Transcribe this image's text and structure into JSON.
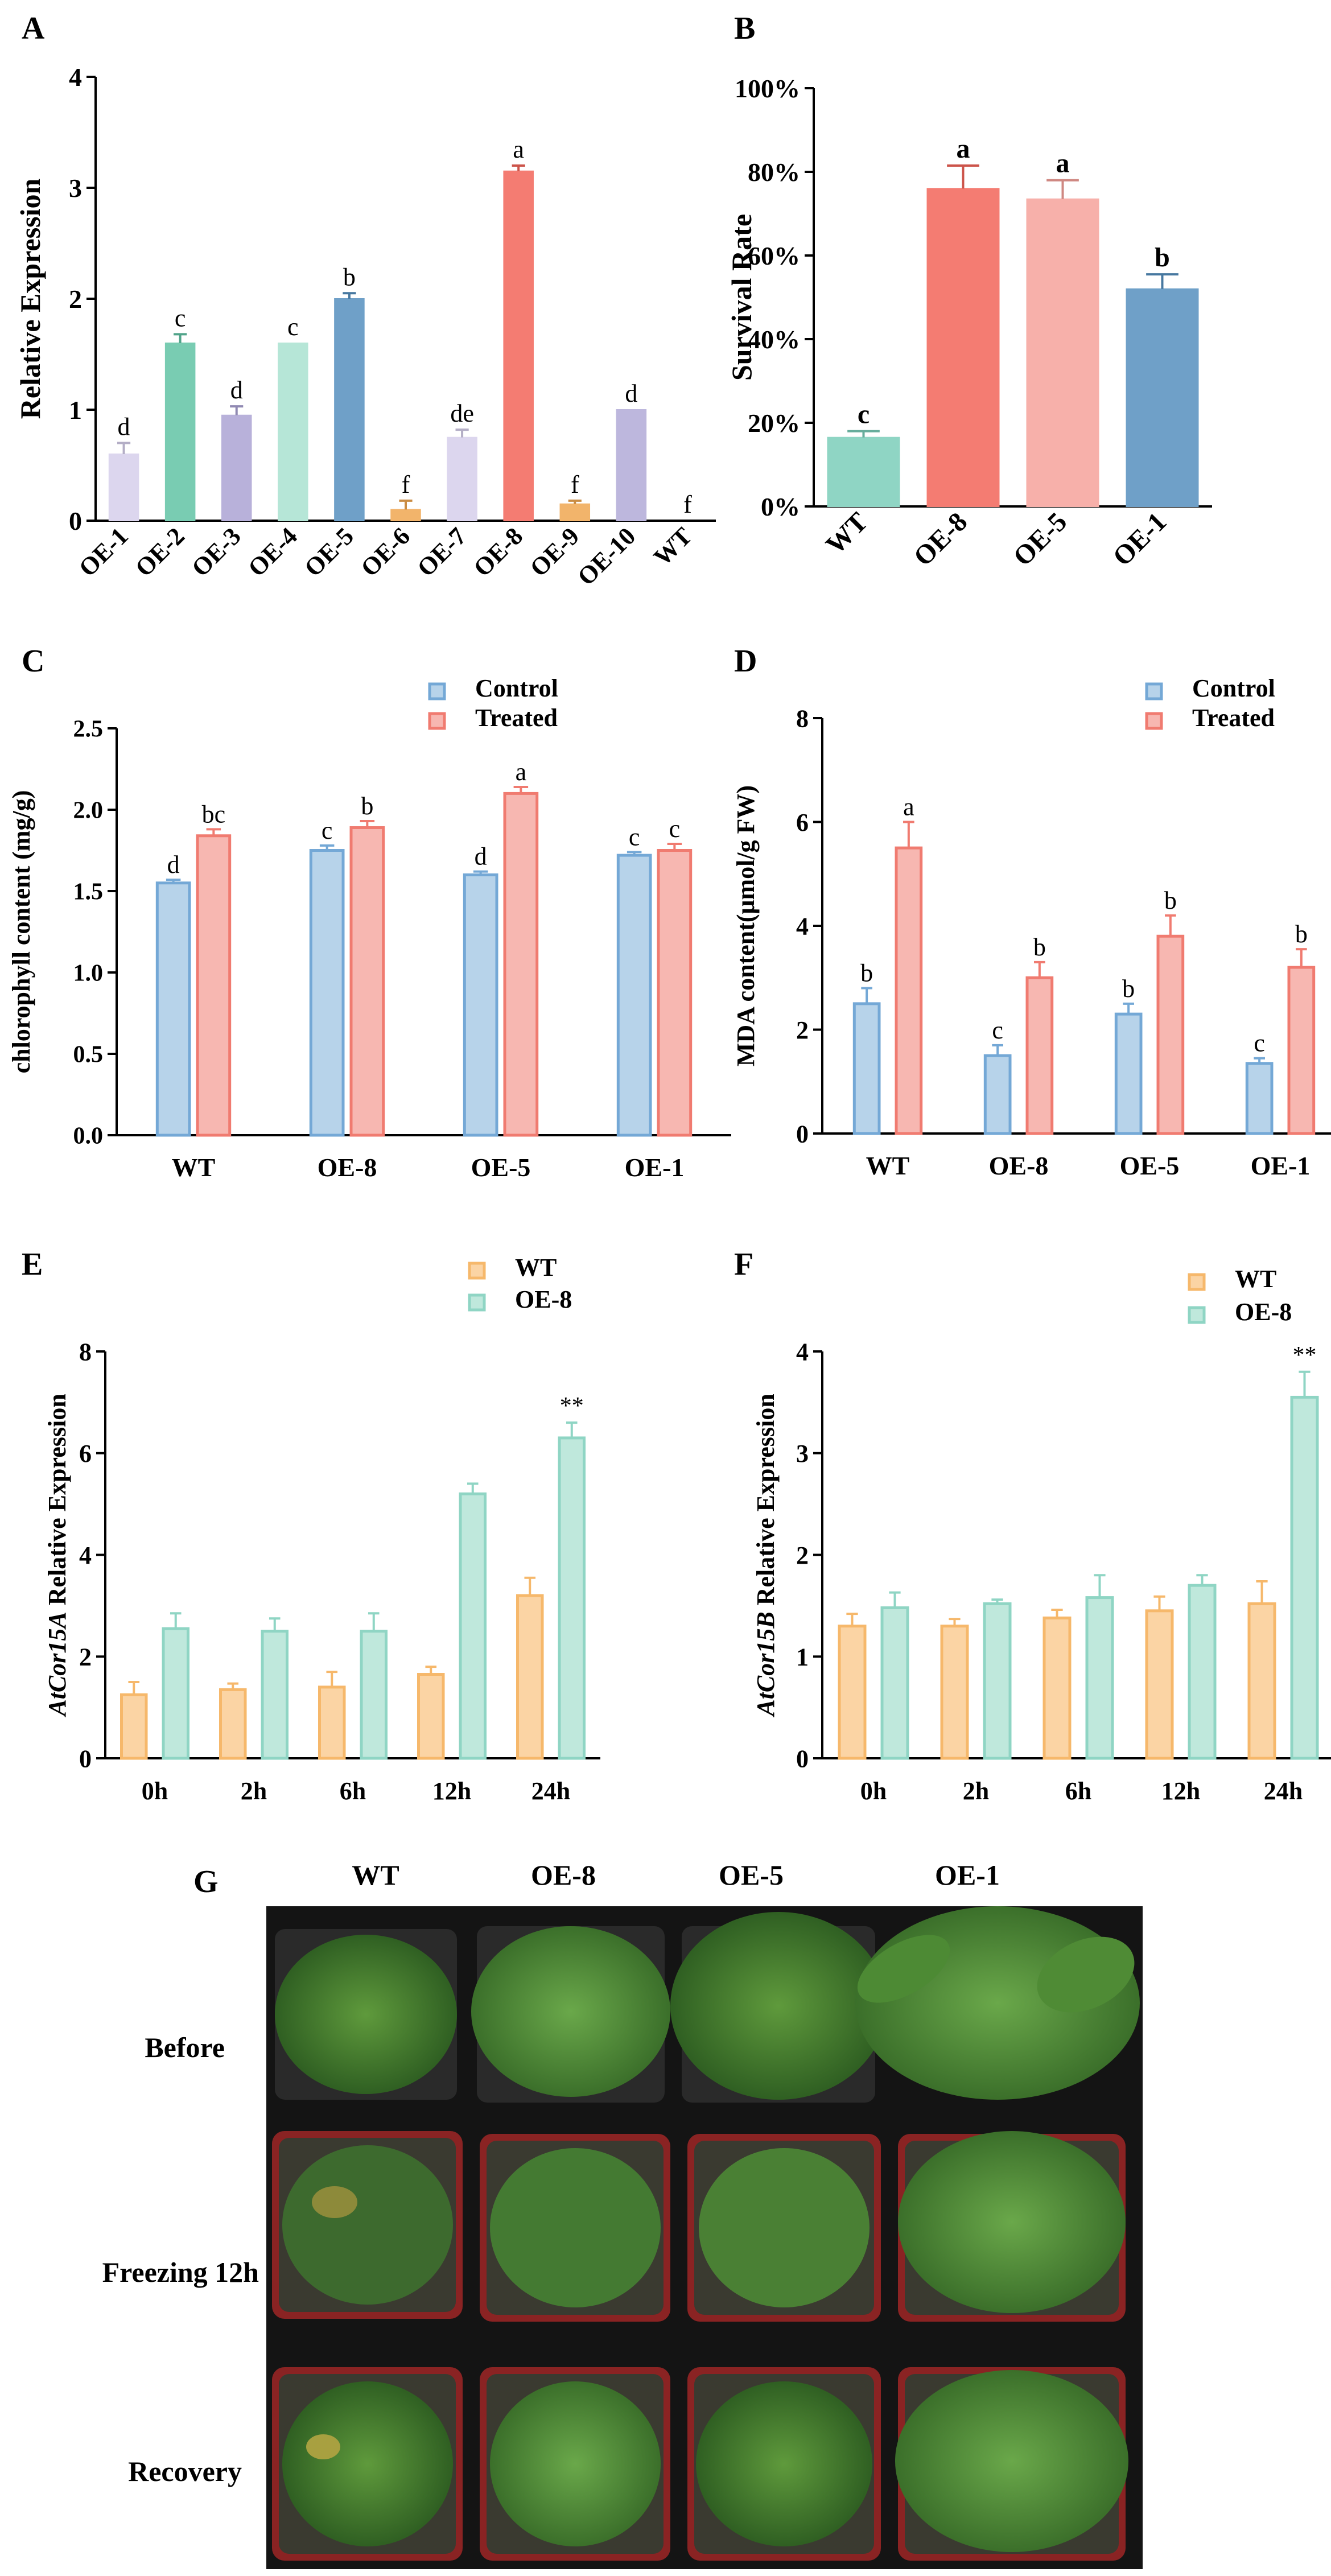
{
  "chart_data": [
    {
      "panel": "A",
      "type": "bar",
      "ylabel": "Relative Expression",
      "ylim": [
        0,
        4
      ],
      "yticks": [
        0,
        1,
        2,
        3,
        4
      ],
      "categories": [
        "OE-1",
        "OE-2",
        "OE-3",
        "OE-4",
        "OE-5",
        "OE-6",
        "OE-7",
        "OE-8",
        "OE-9",
        "OE-10",
        "WT"
      ],
      "values": [
        0.6,
        1.6,
        0.95,
        1.6,
        2.0,
        0.1,
        0.75,
        3.15,
        0.15,
        1.0,
        0.0
      ],
      "errors": [
        0.1,
        0.08,
        0.08,
        0.0,
        0.05,
        0.08,
        0.07,
        0.05,
        0.03,
        0.0,
        0.0
      ],
      "letters": [
        "d",
        "c",
        "d",
        "c",
        "b",
        "f",
        "de",
        "a",
        "f",
        "d",
        "f"
      ],
      "colors": [
        "#dcd6ee",
        "#79ccb2",
        "#b8b1da",
        "#b6e6d7",
        "#6fa0c8",
        "#f2b46b",
        "#dcd6ee",
        "#f47c72",
        "#f2b46b",
        "#bdb7dd",
        "#ffffff"
      ]
    },
    {
      "panel": "B",
      "type": "bar",
      "ylabel": "Survival Rate",
      "ylim": [
        0,
        100
      ],
      "yticks": [
        "0%",
        "20%",
        "40%",
        "60%",
        "80%",
        "100%"
      ],
      "categories": [
        "WT",
        "OE-8",
        "OE-5",
        "OE-1"
      ],
      "values": [
        16.5,
        76,
        73.5,
        52
      ],
      "errors": [
        1.5,
        5.5,
        4.5,
        3.5
      ],
      "letters": [
        "c",
        "a",
        "a",
        "b"
      ],
      "colors": [
        "#8fd5c4",
        "#f47c72",
        "#f7b0aa",
        "#6fa0c8"
      ]
    },
    {
      "panel": "C",
      "type": "bar",
      "ylabel": "chlorophyll content (mg/g)",
      "ylim": [
        0,
        2.5
      ],
      "yticks": [
        "0.0",
        "0.5",
        "1.0",
        "1.5",
        "2.0",
        "2.5"
      ],
      "categories": [
        "WT",
        "OE-8",
        "OE-5",
        "OE-1"
      ],
      "legend": [
        "Control",
        "Treated"
      ],
      "series": [
        {
          "name": "Control",
          "values": [
            1.55,
            1.75,
            1.6,
            1.72
          ],
          "errors": [
            0.02,
            0.03,
            0.02,
            0.02
          ],
          "letters": [
            "d",
            "c",
            "d",
            "c"
          ],
          "fill": "#b7d3ea",
          "stroke": "#74a8d6"
        },
        {
          "name": "Treated",
          "values": [
            1.84,
            1.89,
            2.1,
            1.75
          ],
          "errors": [
            0.04,
            0.04,
            0.04,
            0.04
          ],
          "letters": [
            "bc",
            "b",
            "a",
            "c"
          ],
          "fill": "#f7b7b1",
          "stroke": "#f07b70"
        }
      ]
    },
    {
      "panel": "D",
      "type": "bar",
      "ylabel": "MDA content(μmol/g FW)",
      "ylim": [
        0,
        8
      ],
      "yticks": [
        "0",
        "2",
        "4",
        "6",
        "8"
      ],
      "categories": [
        "WT",
        "OE-8",
        "OE-5",
        "OE-1"
      ],
      "legend": [
        "Control",
        "Treated"
      ],
      "series": [
        {
          "name": "Control",
          "values": [
            2.5,
            1.5,
            2.3,
            1.35
          ],
          "errors": [
            0.3,
            0.2,
            0.2,
            0.1
          ],
          "letters": [
            "b",
            "c",
            "b",
            "c"
          ],
          "fill": "#b7d3ea",
          "stroke": "#74a8d6"
        },
        {
          "name": "Treated",
          "values": [
            5.5,
            3.0,
            3.8,
            3.2
          ],
          "errors": [
            0.5,
            0.3,
            0.4,
            0.35
          ],
          "letters": [
            "a",
            "b",
            "b",
            "b"
          ],
          "fill": "#f7b7b1",
          "stroke": "#f07b70"
        }
      ]
    },
    {
      "panel": "E",
      "type": "bar",
      "ylabel_italic": "AtCor15A",
      "ylabel_rest": " Relative Expression",
      "ylim": [
        0,
        8
      ],
      "yticks": [
        "0",
        "2",
        "4",
        "6",
        "8"
      ],
      "categories": [
        "0h",
        "2h",
        "6h",
        "12h",
        "24h"
      ],
      "legend": [
        "WT",
        "OE-8"
      ],
      "series": [
        {
          "name": "WT",
          "values": [
            1.25,
            1.35,
            1.4,
            1.65,
            3.2
          ],
          "errors": [
            0.25,
            0.12,
            0.3,
            0.15,
            0.35
          ],
          "fill": "#fbd4a4",
          "stroke": "#f6b86b"
        },
        {
          "name": "OE-8",
          "values": [
            2.55,
            2.5,
            2.5,
            5.2,
            6.3
          ],
          "errors": [
            0.3,
            0.25,
            0.35,
            0.2,
            0.3
          ],
          "fill": "#bfe8dc",
          "stroke": "#8fd5c4"
        }
      ],
      "annotations": [
        {
          "category": "24h",
          "series": "OE-8",
          "text": "**"
        }
      ]
    },
    {
      "panel": "F",
      "type": "bar",
      "ylabel_italic": "AtCor15B",
      "ylabel_rest": " Relative Expression",
      "ylim": [
        0,
        4
      ],
      "yticks": [
        "0",
        "1",
        "2",
        "3",
        "4"
      ],
      "categories": [
        "0h",
        "2h",
        "6h",
        "12h",
        "24h"
      ],
      "legend": [
        "WT",
        "OE-8"
      ],
      "series": [
        {
          "name": "WT",
          "values": [
            1.3,
            1.3,
            1.38,
            1.45,
            1.52
          ],
          "errors": [
            0.12,
            0.07,
            0.08,
            0.14,
            0.22
          ],
          "fill": "#fbd4a4",
          "stroke": "#f6b86b"
        },
        {
          "name": "OE-8",
          "values": [
            1.48,
            1.52,
            1.58,
            1.7,
            3.55
          ],
          "errors": [
            0.15,
            0.04,
            0.22,
            0.1,
            0.25
          ],
          "fill": "#bfe8dc",
          "stroke": "#8fd5c4"
        }
      ],
      "annotations": [
        {
          "category": "24h",
          "series": "OE-8",
          "text": "**"
        }
      ]
    }
  ],
  "panel_g": {
    "label": "G",
    "columns": [
      "WT",
      "OE-8",
      "OE-5",
      "OE-1"
    ],
    "rows": [
      "Before",
      "Freezing 12h",
      "Recovery"
    ]
  }
}
